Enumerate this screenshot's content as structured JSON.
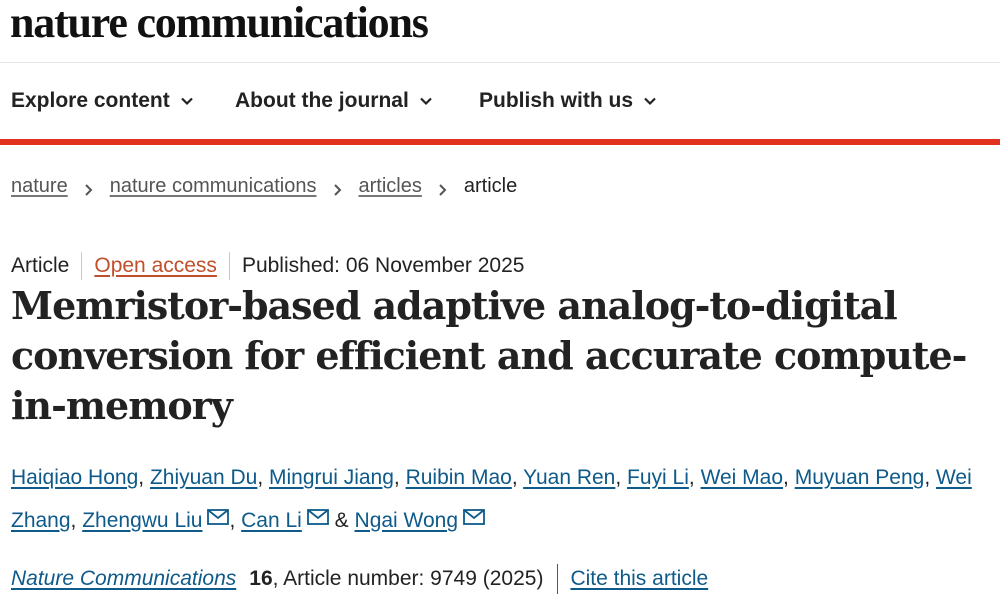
{
  "site": {
    "logo": "nature communications"
  },
  "nav": {
    "items": [
      {
        "label": "Explore content"
      },
      {
        "label": "About the journal"
      },
      {
        "label": "Publish with us"
      }
    ]
  },
  "breadcrumb": [
    "nature",
    "nature communications",
    "articles",
    "article"
  ],
  "meta": {
    "type": "Article",
    "access": "Open access",
    "published": "Published: 06 November 2025"
  },
  "title": "Memristor-based adaptive analog-to-digital conversion for efficient and accurate compute-in-memory",
  "authors": [
    "Haiqiao Hong",
    "Zhiyuan Du",
    "Mingrui Jiang",
    "Ruibin Mao",
    "Yuan Ren",
    "Fuyi Li",
    "Wei Mao",
    "Muyuan Peng",
    "Wei Zhang",
    "Zhengwu Liu",
    "Can Li",
    "Ngai Wong"
  ],
  "citation": {
    "journal": "Nature Communications",
    "volume": "16",
    "article_number": ", Article number: 9749 (2025)",
    "cite_label": "Cite this article"
  },
  "colors": {
    "accent_red": "#e0301e",
    "link_blue": "#0e5a8a",
    "open_access": "#c0502b"
  }
}
